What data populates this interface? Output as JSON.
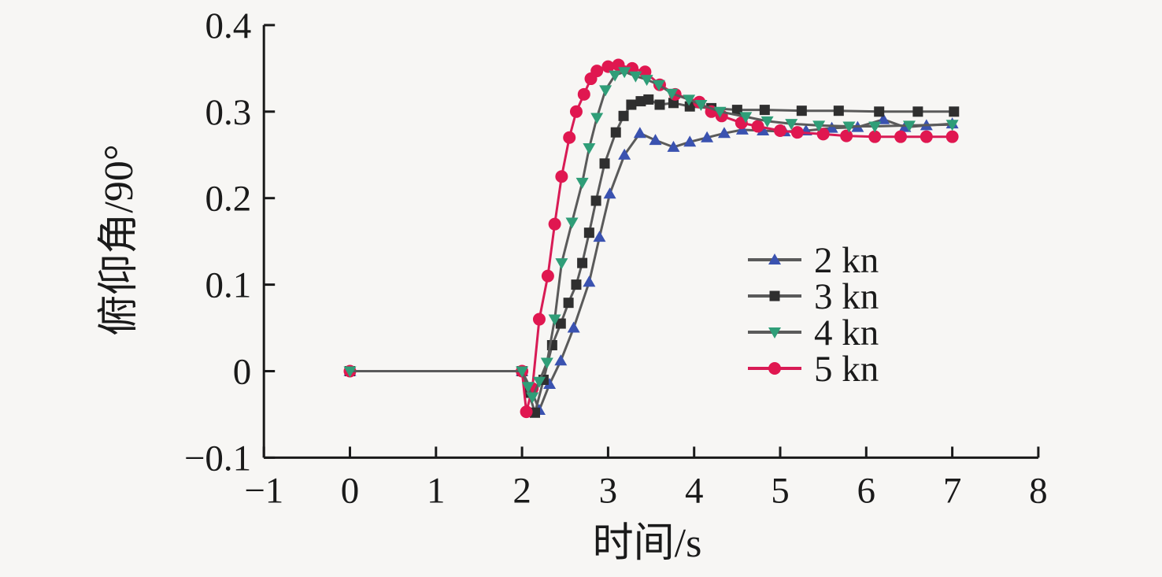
{
  "figure": {
    "background": "#f7f6f4",
    "axis_color": "#1a1a1a",
    "gray_line_color": "#5a5a5a"
  },
  "chart_data": {
    "type": "line",
    "title": "",
    "xlabel": "时间/s",
    "ylabel": "俯仰角/90°",
    "xlim": [
      -1,
      8
    ],
    "ylim": [
      -0.1,
      0.4
    ],
    "x_ticks": [
      -1,
      0,
      1,
      2,
      3,
      4,
      5,
      6,
      7,
      8
    ],
    "y_ticks": [
      -0.1,
      0,
      0.1,
      0.2,
      0.3,
      0.4
    ],
    "grid": false,
    "legend_position": "center-right",
    "draw_order": [
      0,
      1,
      3,
      2
    ],
    "series": [
      {
        "name": "2 kn",
        "marker": "triangle-up",
        "marker_color": "#3a52b0",
        "line_color": "#5a5a5a",
        "points": [
          [
            0,
            0
          ],
          [
            2,
            0
          ],
          [
            2.1,
            -0.02
          ],
          [
            2.2,
            -0.045
          ],
          [
            2.32,
            -0.015
          ],
          [
            2.45,
            0.012
          ],
          [
            2.6,
            0.05
          ],
          [
            2.78,
            0.103
          ],
          [
            2.9,
            0.155
          ],
          [
            3.02,
            0.205
          ],
          [
            3.19,
            0.25
          ],
          [
            3.37,
            0.275
          ],
          [
            3.55,
            0.267
          ],
          [
            3.76,
            0.259
          ],
          [
            3.95,
            0.265
          ],
          [
            4.15,
            0.27
          ],
          [
            4.35,
            0.275
          ],
          [
            4.56,
            0.279
          ],
          [
            4.8,
            0.278
          ],
          [
            5.05,
            0.277
          ],
          [
            5.3,
            0.278
          ],
          [
            5.6,
            0.281
          ],
          [
            5.9,
            0.282
          ],
          [
            6.2,
            0.291
          ],
          [
            6.45,
            0.282
          ],
          [
            6.7,
            0.284
          ],
          [
            7,
            0.286
          ]
        ]
      },
      {
        "name": "3 kn",
        "marker": "square",
        "marker_color": "#2f2f2f",
        "line_color": "#5a5a5a",
        "points": [
          [
            0,
            0
          ],
          [
            2,
            0
          ],
          [
            2.08,
            -0.025
          ],
          [
            2.15,
            -0.048
          ],
          [
            2.25,
            -0.01
          ],
          [
            2.35,
            0.03
          ],
          [
            2.45,
            0.055
          ],
          [
            2.54,
            0.079
          ],
          [
            2.63,
            0.1
          ],
          [
            2.7,
            0.125
          ],
          [
            2.78,
            0.16
          ],
          [
            2.86,
            0.197
          ],
          [
            2.96,
            0.24
          ],
          [
            3.09,
            0.276
          ],
          [
            3.18,
            0.295
          ],
          [
            3.27,
            0.308
          ],
          [
            3.38,
            0.312
          ],
          [
            3.47,
            0.314
          ],
          [
            3.6,
            0.308
          ],
          [
            3.76,
            0.31
          ],
          [
            3.95,
            0.306
          ],
          [
            4.2,
            0.304
          ],
          [
            4.5,
            0.302
          ],
          [
            4.82,
            0.302
          ],
          [
            5.25,
            0.301
          ],
          [
            5.68,
            0.301
          ],
          [
            6.15,
            0.3
          ],
          [
            6.6,
            0.3
          ],
          [
            7.02,
            0.3
          ]
        ]
      },
      {
        "name": "4 kn",
        "marker": "triangle-down",
        "marker_color": "#2f9e78",
        "line_color": "#5a5a5a",
        "points": [
          [
            0,
            0
          ],
          [
            2,
            0
          ],
          [
            2.07,
            -0.018
          ],
          [
            2.12,
            -0.03
          ],
          [
            2.2,
            -0.012
          ],
          [
            2.29,
            0.01
          ],
          [
            2.38,
            0.06
          ],
          [
            2.46,
            0.125
          ],
          [
            2.58,
            0.172
          ],
          [
            2.7,
            0.218
          ],
          [
            2.78,
            0.258
          ],
          [
            2.87,
            0.293
          ],
          [
            2.97,
            0.325
          ],
          [
            3.08,
            0.342
          ],
          [
            3.19,
            0.346
          ],
          [
            3.32,
            0.341
          ],
          [
            3.45,
            0.337
          ],
          [
            3.59,
            0.331
          ],
          [
            3.74,
            0.321
          ],
          [
            3.94,
            0.314
          ],
          [
            4.08,
            0.308
          ],
          [
            4.3,
            0.3
          ],
          [
            4.6,
            0.294
          ],
          [
            4.85,
            0.289
          ],
          [
            5.13,
            0.286
          ],
          [
            5.45,
            0.284
          ],
          [
            5.8,
            0.283
          ],
          [
            6.1,
            0.283
          ],
          [
            6.5,
            0.284
          ],
          [
            7,
            0.285
          ]
        ]
      },
      {
        "name": "5 kn",
        "marker": "circle",
        "marker_color": "#e01750",
        "line_color": "#d81b55",
        "points": [
          [
            0,
            0
          ],
          [
            2,
            0
          ],
          [
            2.05,
            -0.047
          ],
          [
            2.12,
            -0.02
          ],
          [
            2.2,
            0.06
          ],
          [
            2.3,
            0.11
          ],
          [
            2.38,
            0.17
          ],
          [
            2.46,
            0.225
          ],
          [
            2.55,
            0.27
          ],
          [
            2.63,
            0.3
          ],
          [
            2.72,
            0.32
          ],
          [
            2.8,
            0.338
          ],
          [
            2.87,
            0.347
          ],
          [
            3.0,
            0.352
          ],
          [
            3.12,
            0.354
          ],
          [
            3.28,
            0.35
          ],
          [
            3.43,
            0.346
          ],
          [
            3.6,
            0.331
          ],
          [
            3.78,
            0.32
          ],
          [
            4.06,
            0.311
          ],
          [
            4.2,
            0.3
          ],
          [
            4.32,
            0.295
          ],
          [
            4.55,
            0.287
          ],
          [
            4.74,
            0.283
          ],
          [
            5.0,
            0.278
          ],
          [
            5.2,
            0.276
          ],
          [
            5.5,
            0.274
          ],
          [
            5.77,
            0.272
          ],
          [
            6.1,
            0.271
          ],
          [
            6.4,
            0.271
          ],
          [
            6.7,
            0.271
          ],
          [
            7,
            0.271
          ]
        ]
      }
    ],
    "legend": {
      "entries": [
        {
          "label": "2 kn",
          "marker": "triangle-up",
          "marker_color": "#3a52b0",
          "line_color": "#5a5a5a"
        },
        {
          "label": "3 kn",
          "marker": "square",
          "marker_color": "#2f2f2f",
          "line_color": "#5a5a5a"
        },
        {
          "label": "4 kn",
          "marker": "triangle-down",
          "marker_color": "#2f9e78",
          "line_color": "#5a5a5a"
        },
        {
          "label": "5 kn",
          "marker": "circle",
          "marker_color": "#e01750",
          "line_color": "#d81b55"
        }
      ]
    }
  }
}
